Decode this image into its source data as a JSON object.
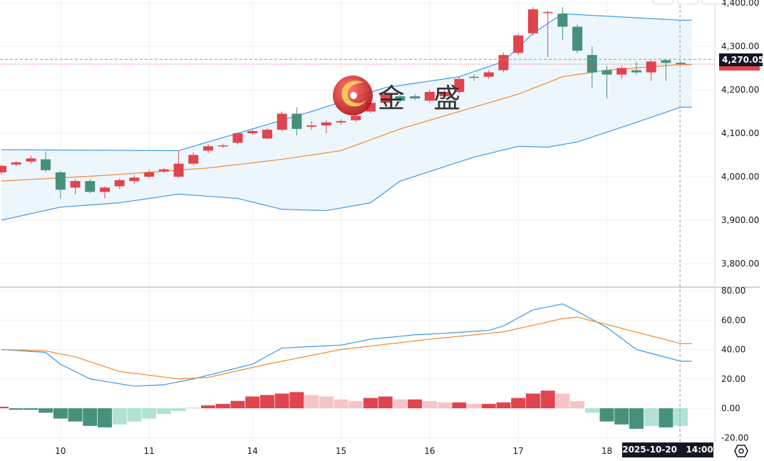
{
  "colors": {
    "up": "#e0444e",
    "down": "#47917c",
    "up_light": "#f5c4c7",
    "down_light": "#b1e2d6",
    "boll_upper": "#3c9ae8",
    "boll_mid": "#f0892a",
    "boll_lower": "#3c9ae8",
    "boll_fill": "#eef6fd",
    "dif": "#3c9ae8",
    "dea": "#f0892a",
    "price_label_bg": "#131722"
  },
  "watermark": {
    "text": "金 盛",
    "icon": "jinsheng-logo-icon"
  },
  "crosshair": {
    "time_label": "2025-10-20",
    "time_value": "14:00",
    "price_label": "4,270.05"
  },
  "settings_icon": "gear-hexagon-icon",
  "chart_data": [
    {
      "type": "candlestick",
      "title": "",
      "ylim": [
        3760,
        4410
      ],
      "yticks": [
        "4,400.00",
        "4,300.00",
        "4,200.00",
        "4,100.00",
        "4,000.00",
        "3,900.00",
        "3,800.00"
      ],
      "ytick_values": [
        4400,
        4300,
        4200,
        4100,
        4000,
        3900,
        3800
      ],
      "xticks": [
        {
          "index": 4,
          "label": "10"
        },
        {
          "index": 10,
          "label": "11"
        },
        {
          "index": 17,
          "label": "14"
        },
        {
          "index": 23,
          "label": "15"
        },
        {
          "index": 29,
          "label": "16"
        },
        {
          "index": 35,
          "label": "17"
        },
        {
          "index": 41,
          "label": "18"
        }
      ],
      "candles": [
        [
          4010,
          4028,
          4005,
          4025
        ],
        [
          4028,
          4036,
          4024,
          4033
        ],
        [
          4035,
          4048,
          4030,
          4042
        ],
        [
          4040,
          4058,
          4012,
          4015
        ],
        [
          4010,
          4014,
          3950,
          3970
        ],
        [
          3975,
          3995,
          3960,
          3990
        ],
        [
          3990,
          3994,
          3962,
          3965
        ],
        [
          3965,
          3978,
          3950,
          3975
        ],
        [
          3978,
          3996,
          3972,
          3992
        ],
        [
          3990,
          4004,
          3984,
          3998
        ],
        [
          4000,
          4016,
          3996,
          4010
        ],
        [
          4012,
          4020,
          4008,
          4017
        ],
        [
          4000,
          4060,
          3998,
          4030
        ],
        [
          4030,
          4056,
          4026,
          4050
        ],
        [
          4060,
          4075,
          4055,
          4070
        ],
        [
          4070,
          4076,
          4066,
          4072
        ],
        [
          4078,
          4102,
          4074,
          4100
        ],
        [
          4100,
          4108,
          4096,
          4105
        ],
        [
          4088,
          4112,
          4086,
          4108
        ],
        [
          4108,
          4150,
          4104,
          4145
        ],
        [
          4145,
          4160,
          4095,
          4110
        ],
        [
          4115,
          4128,
          4108,
          4118
        ],
        [
          4118,
          4130,
          4100,
          4125
        ],
        [
          4125,
          4132,
          4120,
          4128
        ],
        [
          4130,
          4145,
          4126,
          4140
        ],
        [
          4150,
          4175,
          4146,
          4170
        ],
        [
          4170,
          4195,
          4165,
          4190
        ],
        [
          4185,
          4192,
          4170,
          4175
        ],
        [
          4185,
          4190,
          4176,
          4180
        ],
        [
          4175,
          4200,
          4170,
          4195
        ],
        [
          4185,
          4200,
          4180,
          4195
        ],
        [
          4195,
          4230,
          4190,
          4225
        ],
        [
          4230,
          4236,
          4220,
          4228
        ],
        [
          4230,
          4245,
          4225,
          4240
        ],
        [
          4245,
          4285,
          4240,
          4280
        ],
        [
          4285,
          4330,
          4280,
          4325
        ],
        [
          4330,
          4390,
          4325,
          4385
        ],
        [
          4378,
          4382,
          4275,
          4379
        ],
        [
          4375,
          4390,
          4315,
          4345
        ],
        [
          4345,
          4350,
          4285,
          4290
        ],
        [
          4280,
          4300,
          4205,
          4240
        ],
        [
          4245,
          4255,
          4180,
          4235
        ],
        [
          4235,
          4255,
          4225,
          4250
        ],
        [
          4245,
          4265,
          4235,
          4240
        ],
        [
          4240,
          4268,
          4220,
          4265
        ],
        [
          4268,
          4272,
          4220,
          4262
        ],
        [
          4262,
          4264,
          4258,
          4259
        ]
      ],
      "bollinger": {
        "upper": [
          [
            0,
            4062
          ],
          [
            12,
            4060
          ],
          [
            16,
            4100
          ],
          [
            21,
            4150
          ],
          [
            26,
            4205
          ],
          [
            31,
            4230
          ],
          [
            34,
            4265
          ],
          [
            36,
            4330
          ],
          [
            38,
            4375
          ],
          [
            46,
            4360
          ]
        ],
        "middle": [
          [
            0,
            3990
          ],
          [
            7,
            4003
          ],
          [
            14,
            4020
          ],
          [
            19,
            4040
          ],
          [
            23,
            4060
          ],
          [
            27,
            4110
          ],
          [
            31,
            4150
          ],
          [
            35,
            4190
          ],
          [
            38,
            4230
          ],
          [
            41,
            4245
          ],
          [
            46,
            4258
          ]
        ],
        "lower": [
          [
            0,
            3900
          ],
          [
            4,
            3930
          ],
          [
            8,
            3940
          ],
          [
            12,
            3960
          ],
          [
            16,
            3950
          ],
          [
            19,
            3925
          ],
          [
            22,
            3922
          ],
          [
            25,
            3940
          ],
          [
            27,
            3990
          ],
          [
            32,
            4045
          ],
          [
            35,
            4070
          ],
          [
            37,
            4068
          ],
          [
            39,
            4080
          ],
          [
            43,
            4125
          ],
          [
            46,
            4160
          ]
        ]
      },
      "current_price": 4259,
      "ref_price": 4270.05
    },
    {
      "type": "macd",
      "ylim": [
        -22,
        82
      ],
      "yticks": [
        "80.00",
        "60.00",
        "40.00",
        "20.00",
        "0.00",
        "-20.00"
      ],
      "ytick_values": [
        80,
        60,
        40,
        20,
        0,
        -20
      ],
      "dif": [
        [
          0,
          40
        ],
        [
          3,
          38
        ],
        [
          4,
          30
        ],
        [
          6,
          20
        ],
        [
          9,
          15
        ],
        [
          11,
          16
        ],
        [
          13,
          20
        ],
        [
          17,
          30
        ],
        [
          19,
          41
        ],
        [
          23,
          43
        ],
        [
          25,
          47
        ],
        [
          28,
          50
        ],
        [
          30,
          51
        ],
        [
          33,
          53
        ],
        [
          34,
          56
        ],
        [
          36,
          67
        ],
        [
          38,
          71
        ],
        [
          39,
          66
        ],
        [
          41,
          55
        ],
        [
          43,
          40
        ],
        [
          46,
          32
        ]
      ],
      "dea": [
        [
          0,
          40
        ],
        [
          3,
          39
        ],
        [
          5,
          35
        ],
        [
          8,
          25
        ],
        [
          12,
          20
        ],
        [
          14,
          21
        ],
        [
          18,
          30
        ],
        [
          23,
          40
        ],
        [
          29,
          47
        ],
        [
          34,
          52
        ],
        [
          38,
          61
        ],
        [
          39,
          62
        ],
        [
          41,
          57
        ],
        [
          46,
          44
        ]
      ],
      "histogram": [
        1,
        -1,
        -1,
        -3,
        -7,
        -9,
        -12,
        -13,
        -11,
        -9,
        -7,
        -4,
        -2,
        0.5,
        2,
        3,
        5,
        8,
        9,
        10,
        11,
        9,
        8,
        6,
        5,
        7,
        8,
        6,
        6,
        5,
        4,
        4,
        3,
        3,
        4,
        7,
        10,
        12,
        10,
        5,
        -3,
        -9,
        -11,
        -14,
        -12,
        -13,
        -12
      ]
    }
  ]
}
